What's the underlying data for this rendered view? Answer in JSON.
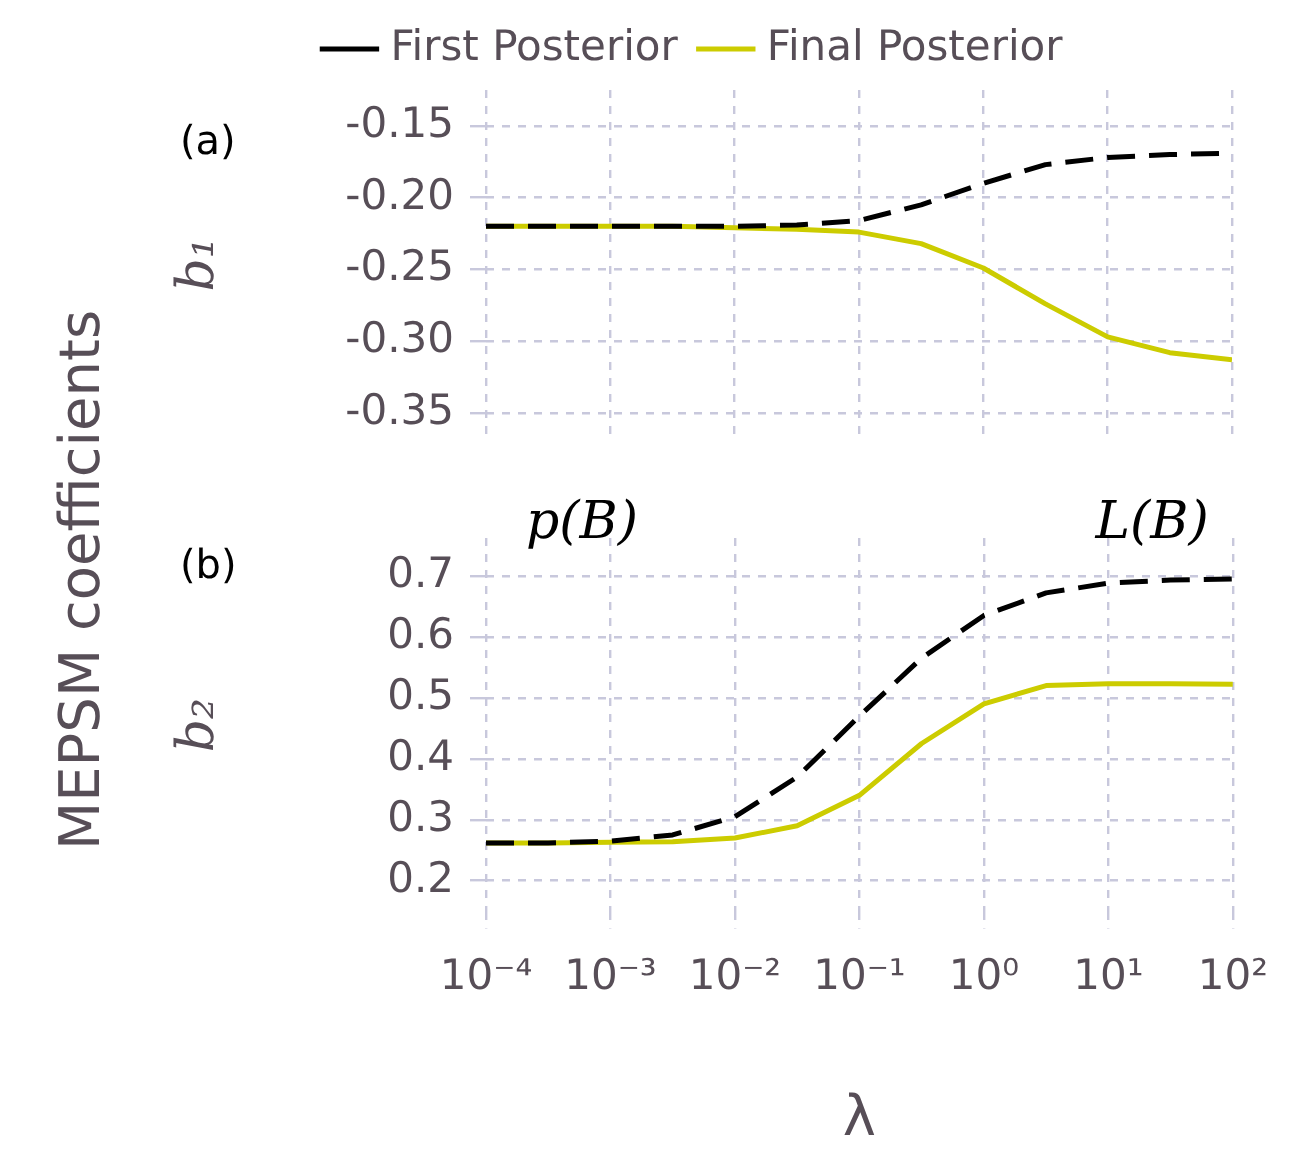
{
  "chart_data": [
    {
      "type": "line",
      "ylabel": "b₁",
      "annotations": [
        "(a)",
        "MEPSM coefficients"
      ],
      "legend": "top",
      "tick_labels": "y",
      "grid": true,
      "log": "x",
      "line_style": "solid",
      "marker": "none",
      "x": [
        0.0001,
        0.000316,
        0.001,
        0.00316,
        0.01,
        0.0316,
        0.1,
        0.316,
        1,
        3.16,
        10,
        31.6,
        100
      ],
      "xlim": [
        0.0001,
        100
      ],
      "xticks": [
        0.0001,
        0.001,
        0.01,
        0.1,
        1,
        10,
        100
      ],
      "ylim": [
        -0.368,
        -0.125
      ],
      "yticks": [
        -0.15,
        {
          "value": -0.2,
          "label": "-0.20"
        },
        -0.25,
        {
          "value": -0.3,
          "label": "-0.30"
        },
        -0.35
      ],
      "series": [
        {
          "name": "First Posterior",
          "color": "#000000",
          "line_style": "dashed",
          "values": [
            -0.22,
            -0.22,
            -0.22,
            -0.22,
            -0.22,
            -0.219,
            -0.216,
            -0.205,
            -0.19,
            -0.177,
            -0.172,
            -0.17,
            -0.169
          ]
        },
        {
          "name": "Final Posterior",
          "color": "#cccc00",
          "values": [
            -0.22,
            -0.22,
            -0.22,
            -0.22,
            -0.221,
            -0.222,
            -0.224,
            -0.232,
            -0.249,
            -0.274,
            -0.297,
            -0.308,
            -0.313
          ]
        }
      ]
    },
    {
      "type": "line",
      "ylabel": "b₂",
      "xlabel": "λ",
      "annotations": [
        "(b)",
        "p(B)",
        "L(B)"
      ],
      "grid": true,
      "log": "x",
      "line_style": "solid",
      "marker": "none",
      "x": [
        0.0001,
        0.000316,
        0.001,
        0.00316,
        0.01,
        0.0316,
        0.1,
        0.316,
        1,
        3.16,
        10,
        31.6,
        100
      ],
      "xlim": [
        0.0001,
        100
      ],
      "xticks": [
        {
          "value": 0.0001,
          "label": "10⁻⁴"
        },
        {
          "value": 0.001,
          "label": "10⁻³"
        },
        {
          "value": 0.01,
          "label": "10⁻²"
        },
        {
          "value": 0.1,
          "label": "10⁻¹"
        },
        {
          "value": 1,
          "label": "10⁰"
        },
        {
          "value": 10,
          "label": "10¹"
        },
        {
          "value": 100,
          "label": "10²"
        }
      ],
      "ylim": [
        0.148,
        0.762
      ],
      "yticks": [
        0.2,
        0.3,
        0.4,
        0.5,
        0.6,
        0.7
      ],
      "series": [
        {
          "color": "#000000",
          "line_style": "dashed",
          "values": [
            0.262,
            0.262,
            0.265,
            0.275,
            0.305,
            0.37,
            0.47,
            0.565,
            0.635,
            0.672,
            0.688,
            0.693,
            0.695
          ]
        },
        {
          "color": "#cccc00",
          "values": [
            0.262,
            0.262,
            0.263,
            0.264,
            0.27,
            0.29,
            0.34,
            0.425,
            0.49,
            0.52,
            0.523,
            0.523,
            0.522
          ]
        }
      ]
    }
  ]
}
